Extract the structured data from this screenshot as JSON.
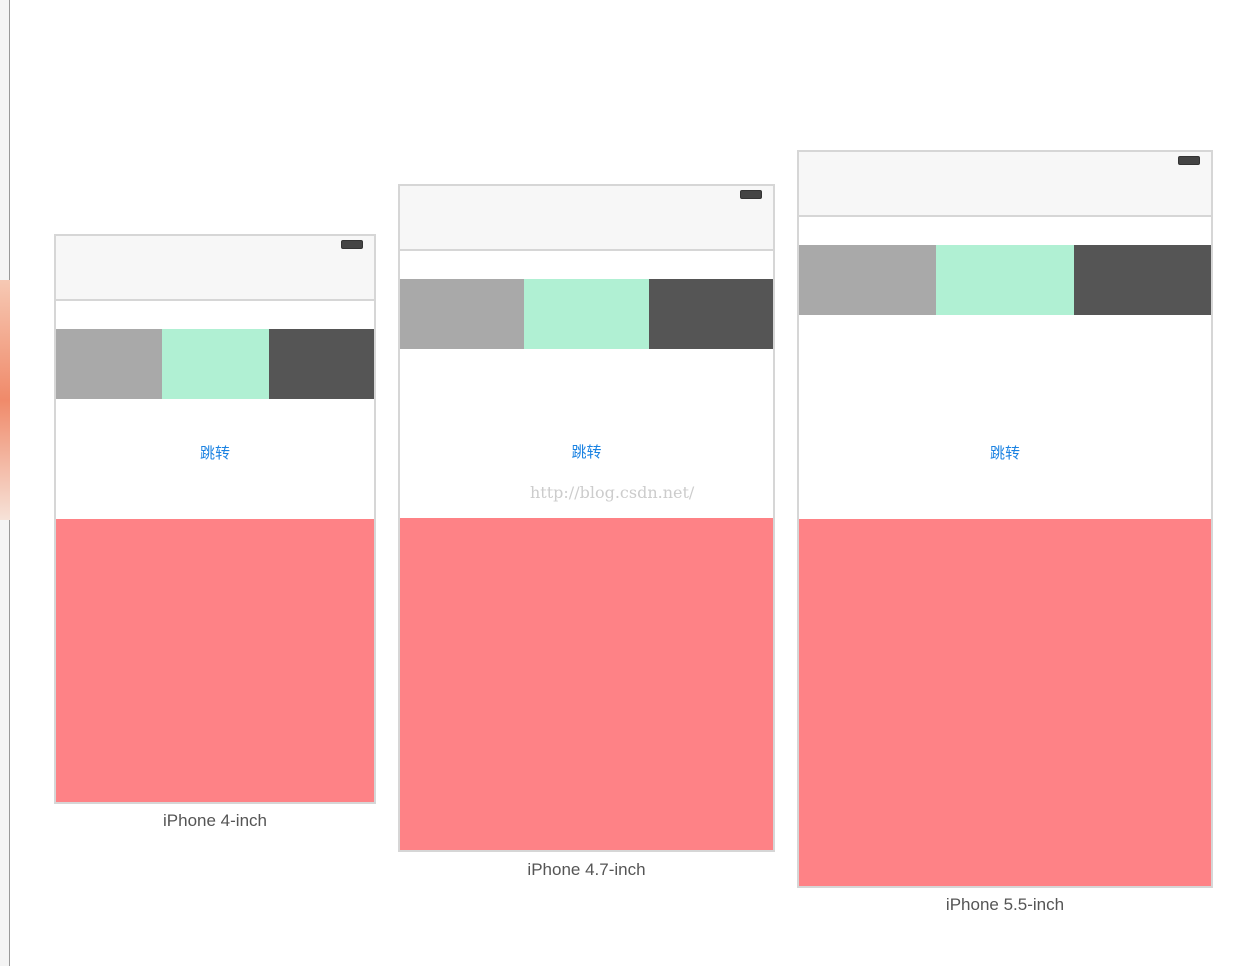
{
  "devices": [
    {
      "button": "跳转",
      "caption": "iPhone 4-inch"
    },
    {
      "button": "跳转",
      "caption": "iPhone 4.7-inch"
    },
    {
      "button": "跳转",
      "caption": "iPhone 5.5-inch"
    }
  ],
  "watermark": "http://blog.csdn.net/"
}
